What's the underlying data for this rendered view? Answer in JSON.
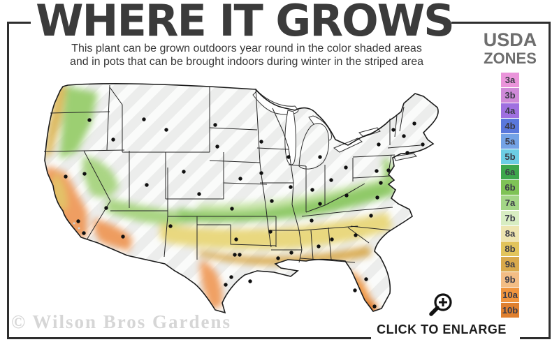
{
  "header": {
    "title": "WHERE IT GROWS",
    "subtitle_line1": "This plant can be grown outdoors year round in the color shaded areas",
    "subtitle_line2": "and in pots that can be brought indoors during winter in the striped area"
  },
  "legend": {
    "title_line1": "USDA",
    "title_line2": "ZONES",
    "zones": [
      {
        "label": "3a",
        "color": "#ea94da"
      },
      {
        "label": "3b",
        "color": "#cf8ad8"
      },
      {
        "label": "4a",
        "color": "#9f70e0"
      },
      {
        "label": "4b",
        "color": "#5a78dc"
      },
      {
        "label": "5a",
        "color": "#74a3e6"
      },
      {
        "label": "5b",
        "color": "#6ccde4"
      },
      {
        "label": "6a",
        "color": "#3da74c"
      },
      {
        "label": "6b",
        "color": "#7fc356"
      },
      {
        "label": "7a",
        "color": "#a4d687"
      },
      {
        "label": "7b",
        "color": "#d8edc2"
      },
      {
        "label": "8a",
        "color": "#eee5b0"
      },
      {
        "label": "8b",
        "color": "#e2c45c"
      },
      {
        "label": "9a",
        "color": "#d9a94c"
      },
      {
        "label": "9b",
        "color": "#f3bd85"
      },
      {
        "label": "10a",
        "color": "#f0953e"
      },
      {
        "label": "10b",
        "color": "#e0802f"
      }
    ]
  },
  "map": {
    "striped_area_meaning": "striped area",
    "palette": {
      "pnw_green": "#9ccf72",
      "pnw_gold": "#ddb85a",
      "ca_salmon": "#ef9e62",
      "ca_gold": "#e2c267",
      "desert_green": "#aad584",
      "green_band": "#8fc967",
      "green_band_pale": "#c7e5a6",
      "east_green": "#9ccf72",
      "yellow_band": "#e9d87f",
      "gold_band": "#d9ac52",
      "tx_orange": "#f0a063",
      "az_orange": "#ee9c5e",
      "fl_orange": "#ef9440",
      "fl_deep": "#df7b2c"
    },
    "dots": [
      [
        78,
        64
      ],
      [
        112,
        92
      ],
      [
        156,
        63
      ],
      [
        188,
        78
      ],
      [
        258,
        71
      ],
      [
        261,
        102
      ],
      [
        213,
        138
      ],
      [
        71,
        141
      ],
      [
        102,
        190
      ],
      [
        160,
        157
      ],
      [
        235,
        170
      ],
      [
        44,
        145
      ],
      [
        62,
        209
      ],
      [
        70,
        226
      ],
      [
        126,
        231
      ],
      [
        194,
        216
      ],
      [
        294,
        148
      ],
      [
        282,
        191
      ],
      [
        288,
        235
      ],
      [
        286,
        257
      ],
      [
        293,
        257
      ],
      [
        281,
        289
      ],
      [
        308,
        295
      ],
      [
        273,
        300
      ],
      [
        324,
        95
      ],
      [
        324,
        140
      ],
      [
        363,
        117
      ],
      [
        408,
        117
      ],
      [
        366,
        160
      ],
      [
        397,
        164
      ],
      [
        339,
        180
      ],
      [
        337,
        224
      ],
      [
        348,
        262
      ],
      [
        408,
        184
      ],
      [
        396,
        208
      ],
      [
        367,
        254
      ],
      [
        406,
        245
      ],
      [
        425,
        235
      ],
      [
        459,
        229
      ],
      [
        481,
        201
      ],
      [
        490,
        175
      ],
      [
        446,
        172
      ],
      [
        424,
        150
      ],
      [
        489,
        137
      ],
      [
        445,
        132
      ],
      [
        492,
        99
      ],
      [
        513,
        78
      ],
      [
        528,
        87
      ],
      [
        543,
        69
      ],
      [
        555,
        99
      ],
      [
        533,
        111
      ],
      [
        506,
        136
      ],
      [
        495,
        154
      ],
      [
        458,
        308
      ],
      [
        474,
        292
      ],
      [
        486,
        331
      ]
    ]
  },
  "footer": {
    "watermark": "© Wilson Bros Gardens",
    "enlarge_label": "CLICK TO ENLARGE"
  }
}
